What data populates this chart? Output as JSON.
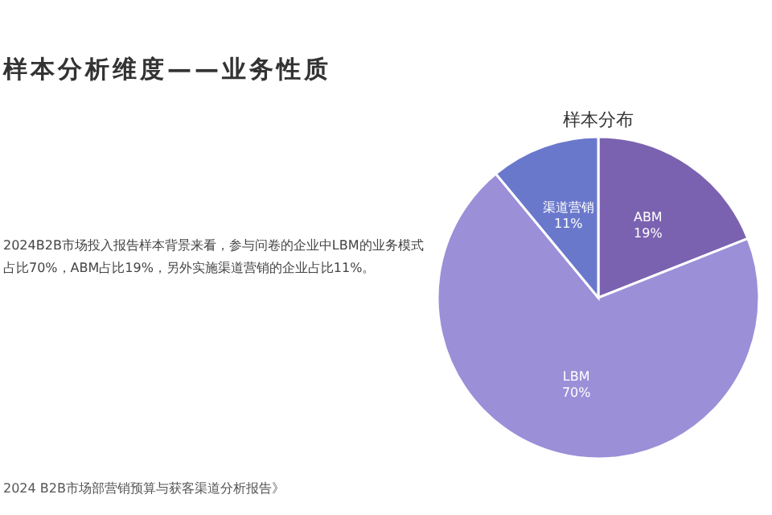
{
  "chart_data": {
    "type": "pie",
    "title": "样本分布",
    "categories": [
      "ABM",
      "LBM",
      "渠道营销"
    ],
    "values": [
      19,
      70,
      11
    ],
    "colors": [
      "#7b62b0",
      "#9b8fd8",
      "#6a78cc"
    ],
    "value_labels": [
      "19%",
      "70%",
      "11%"
    ],
    "annotations": [
      "样本分析维度——业务性质",
      "2024B2B市场投入报告样本背景来看，参与问卷的企业中LBM的业务模式占比70%，ABM占比19%，另外实施渠道营销的企业占比11%。",
      "2024 B2B市场部营销预算与获客渠道分析报告》"
    ]
  }
}
